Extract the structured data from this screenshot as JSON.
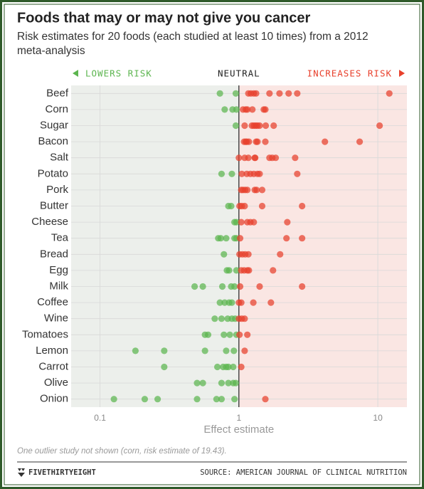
{
  "chart_data": {
    "type": "dot",
    "title": "Foods that may or may not give you cancer",
    "subtitle": "Risk estimates for 20 foods (each studied at least 10 times) from a 2012 meta-analysis",
    "legend": {
      "lower": "LOWERS RISK",
      "neutral": "NEUTRAL",
      "higher": "INCREASES RISK"
    },
    "xlabel": "Effect estimate",
    "note": "One outlier study not shown (corn, risk estimate of 19.43).",
    "brand": "FIVETHIRTYEIGHT",
    "source": "SOURCE: AMERICAN JOURNAL OF CLINICAL NUTRITION",
    "xscale": "log",
    "xlim": [
      0.062,
      16.2
    ],
    "xticks": [
      0.1,
      1,
      10
    ],
    "reference_line": 1,
    "grid": true,
    "lower_color": "#5cb54f",
    "higher_color": "#e8402c",
    "categories": [
      "Beef",
      "Corn",
      "Sugar",
      "Bacon",
      "Salt",
      "Potato",
      "Pork",
      "Butter",
      "Cheese",
      "Tea",
      "Bread",
      "Egg",
      "Milk",
      "Coffee",
      "Wine",
      "Tomatoes",
      "Lemon",
      "Carrot",
      "Olive",
      "Onion"
    ],
    "values": [
      [
        0.73,
        0.95,
        1.17,
        1.22,
        1.28,
        1.33,
        1.66,
        1.96,
        2.28,
        2.63,
        12.1
      ],
      [
        0.79,
        0.9,
        0.96,
        1.07,
        1.12,
        1.15,
        1.25,
        1.51,
        1.55
      ],
      [
        0.95,
        1.1,
        1.24,
        1.28,
        1.32,
        1.36,
        1.41,
        1.56,
        1.78,
        10.3
      ],
      [
        1.09,
        1.12,
        1.14,
        1.18,
        1.33,
        1.36,
        1.55,
        4.16,
        7.4
      ],
      [
        1.0,
        1.1,
        1.17,
        1.3,
        1.31,
        1.66,
        1.74,
        1.84,
        2.54
      ],
      [
        0.75,
        0.89,
        1.05,
        1.14,
        1.21,
        1.28,
        1.36,
        1.41,
        2.63
      ],
      [
        1.04,
        1.07,
        1.11,
        1.15,
        1.3,
        1.34,
        1.47
      ],
      [
        0.84,
        0.88,
        1.01,
        1.05,
        1.1,
        1.47,
        2.85
      ],
      [
        0.93,
        0.96,
        1.04,
        1.15,
        1.21,
        1.28,
        2.23
      ],
      [
        0.71,
        0.74,
        0.81,
        0.93,
        0.96,
        1.02,
        2.2,
        2.85
      ],
      [
        0.78,
        1.01,
        1.06,
        1.11,
        1.17,
        1.98
      ],
      [
        0.82,
        0.85,
        0.96,
        1.04,
        1.09,
        1.15,
        1.18,
        1.76
      ],
      [
        0.48,
        0.55,
        0.76,
        0.88,
        0.93,
        1.02,
        1.41,
        2.85
      ],
      [
        0.73,
        0.79,
        0.85,
        0.89,
        1.0,
        1.04,
        1.27,
        1.7
      ],
      [
        0.67,
        0.75,
        0.83,
        0.89,
        0.94,
        1.0,
        1.05,
        1.1
      ],
      [
        0.57,
        0.6,
        0.78,
        0.86,
        0.96,
        1.01,
        1.15
      ],
      [
        0.18,
        0.29,
        0.57,
        0.81,
        0.92,
        1.1
      ],
      [
        0.29,
        0.7,
        0.77,
        0.81,
        0.84,
        0.91,
        1.04
      ],
      [
        0.5,
        0.55,
        0.75,
        0.84,
        0.91,
        0.95
      ],
      [
        0.126,
        0.21,
        0.26,
        0.5,
        0.69,
        0.75,
        0.93,
        1.55
      ]
    ]
  }
}
